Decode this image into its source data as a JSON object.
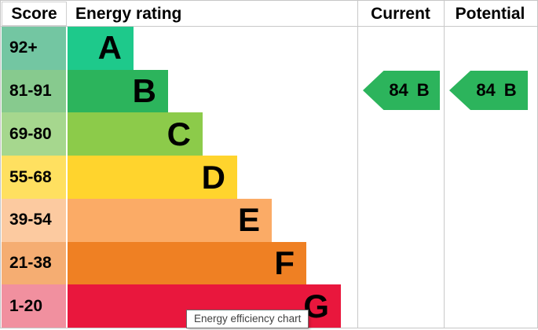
{
  "header": {
    "score": "Score",
    "energy_rating": "Energy rating",
    "current": "Current",
    "potential": "Potential"
  },
  "bands": [
    {
      "letter": "A",
      "score_range": "92+",
      "color": "#1ec98b",
      "score_cell_color": "#73c6a2"
    },
    {
      "letter": "B",
      "score_range": "81-91",
      "color": "#2cb45c",
      "score_cell_color": "#87ca8e"
    },
    {
      "letter": "C",
      "score_range": "69-80",
      "color": "#8ccb4a",
      "score_cell_color": "#a6d78e"
    },
    {
      "letter": "D",
      "score_range": "55-68",
      "color": "#ffd42d",
      "score_cell_color": "#ffe060"
    },
    {
      "letter": "E",
      "score_range": "39-54",
      "color": "#fbab66",
      "score_cell_color": "#fccaa0"
    },
    {
      "letter": "F",
      "score_range": "21-38",
      "color": "#ef8023",
      "score_cell_color": "#f5ad72"
    },
    {
      "letter": "G",
      "score_range": "1-20",
      "color": "#e9173d",
      "score_cell_color": "#f1909f"
    }
  ],
  "current": {
    "value": "84",
    "letter": "B",
    "color": "#2cb45c"
  },
  "potential": {
    "value": "84",
    "letter": "B",
    "color": "#2cb45c"
  },
  "tooltip": "Energy efficiency chart",
  "border_color": "#c9c9c9",
  "chart_data": {
    "type": "bar",
    "title": "Energy efficiency chart",
    "columns": [
      "Score",
      "Energy rating",
      "Current",
      "Potential"
    ],
    "categories": [
      "A",
      "B",
      "C",
      "D",
      "E",
      "F",
      "G"
    ],
    "score_ranges": [
      "92+",
      "81-91",
      "69-80",
      "55-68",
      "39-54",
      "21-38",
      "1-20"
    ],
    "band_colors": [
      "#1ec98b",
      "#2cb45c",
      "#8ccb4a",
      "#ffd42d",
      "#fbab66",
      "#ef8023",
      "#e9173d"
    ],
    "bar_relative_lengths": [
      1,
      1.53,
      2.05,
      2.57,
      3.08,
      3.62,
      4.14
    ],
    "current": {
      "value": 84,
      "band": "B"
    },
    "potential": {
      "value": 84,
      "band": "B"
    },
    "legend_position": "none",
    "grid": false
  }
}
